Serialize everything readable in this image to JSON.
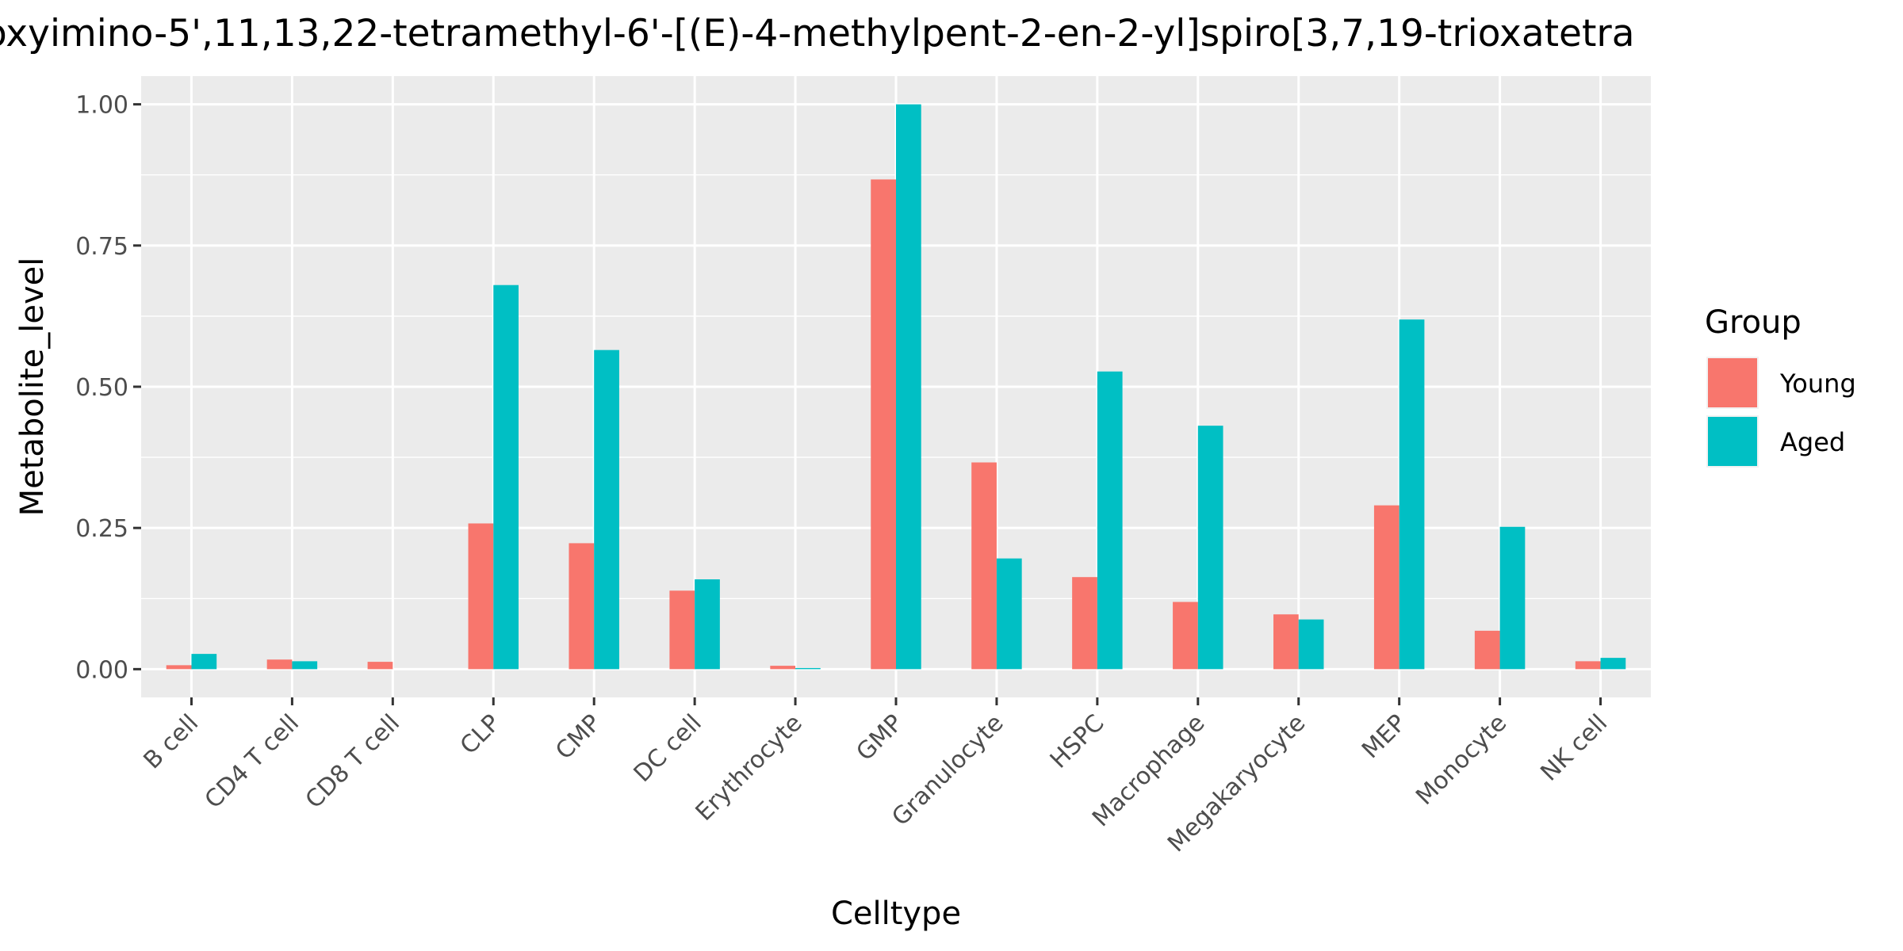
{
  "chart_data": {
    "type": "bar",
    "title": "oxyimino-5',11,13,22-tetramethyl-6'-[(E)-4-methylpent-2-en-2-yl]spiro[3,7,19-trioxatetra",
    "xlabel": "Celltype",
    "ylabel": "Metabolite_level",
    "categories": [
      "B cell",
      "CD4 T cell",
      "CD8 T cell",
      "CLP",
      "CMP",
      "DC cell",
      "Erythrocyte",
      "GMP",
      "Granulocyte",
      "HSPC",
      "Macrophage",
      "Megakaryocyte",
      "MEP",
      "Monocyte",
      "NK cell"
    ],
    "series": [
      {
        "name": "Young",
        "color": "#F8766D",
        "values": [
          0.007,
          0.017,
          0.013,
          0.258,
          0.223,
          0.139,
          0.006,
          0.867,
          0.366,
          0.163,
          0.119,
          0.097,
          0.29,
          0.068,
          0.014
        ]
      },
      {
        "name": "Aged",
        "color": "#00BFC4",
        "values": [
          0.027,
          0.014,
          0.0,
          0.68,
          0.565,
          0.159,
          0.002,
          1.0,
          0.196,
          0.527,
          0.431,
          0.088,
          0.619,
          0.252,
          0.02
        ]
      }
    ],
    "ylim": [
      -0.05,
      1.05
    ],
    "yticks": [
      0.0,
      0.25,
      0.5,
      0.75,
      1.0
    ],
    "ytick_labels": [
      "0.00",
      "0.25",
      "0.50",
      "0.75",
      "1.00"
    ],
    "legend": {
      "title": "Group",
      "position": "right"
    },
    "grid": true,
    "panel_background": "#EBEBEB",
    "grid_color": "#FFFFFF"
  }
}
